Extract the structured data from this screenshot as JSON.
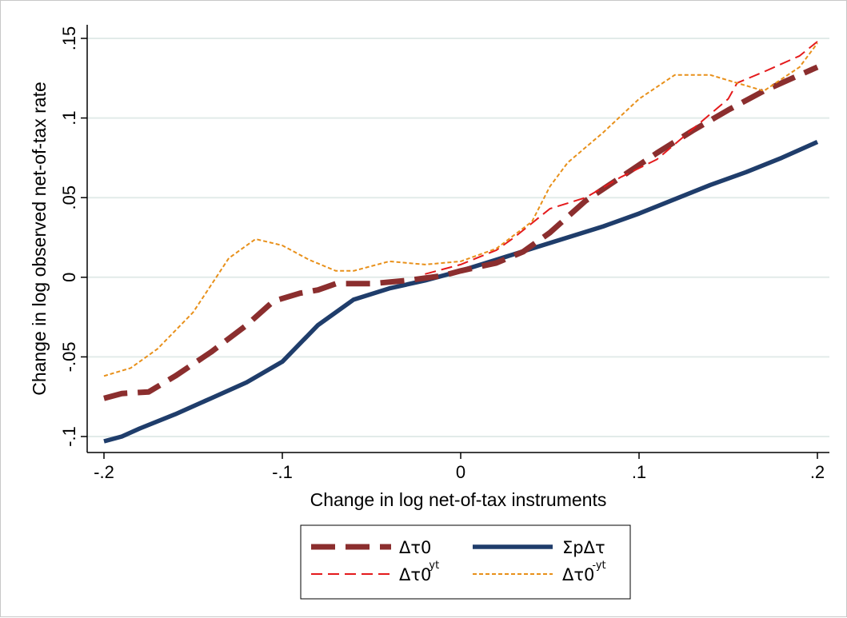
{
  "chart_data": {
    "type": "line",
    "title": "",
    "xlabel": "Change in log net-of-tax instruments",
    "ylabel": "Change in log observed net-of-tax rate",
    "xlim": [
      -0.2,
      0.2
    ],
    "ylim": [
      -0.1,
      0.15
    ],
    "xticks": [
      -0.2,
      -0.1,
      0,
      0.1,
      0.2
    ],
    "xtick_labels": [
      "-.2",
      "-.1",
      "0",
      ".1",
      ".2"
    ],
    "yticks": [
      -0.1,
      -0.05,
      0,
      0.05,
      0.1,
      0.15
    ],
    "ytick_labels": [
      "-.1",
      "-.05",
      "0",
      ".05",
      ".1",
      ".15"
    ],
    "grid": "horizontal",
    "legend_position": "bottom",
    "series": [
      {
        "name": "Δτ0",
        "name_base": "Δτ0",
        "name_sup": "",
        "style": "long-dash-thick",
        "color": "#8b2e2e",
        "x": [
          -0.2,
          -0.19,
          -0.175,
          -0.16,
          -0.14,
          -0.12,
          -0.105,
          -0.09,
          -0.08,
          -0.07,
          -0.05,
          -0.03,
          -0.01,
          0,
          0.02,
          0.035,
          0.05,
          0.07,
          0.09,
          0.11,
          0.13,
          0.15,
          0.17,
          0.19,
          0.2
        ],
        "values": [
          -0.076,
          -0.073,
          -0.072,
          -0.062,
          -0.047,
          -0.03,
          -0.015,
          -0.01,
          -0.008,
          -0.004,
          -0.004,
          -0.002,
          0.001,
          0.004,
          0.009,
          0.016,
          0.028,
          0.048,
          0.063,
          0.078,
          0.092,
          0.105,
          0.117,
          0.127,
          0.132
        ]
      },
      {
        "name": "ΣpΔτ",
        "name_base": "ΣpΔτ",
        "name_sup": "",
        "style": "solid-thick",
        "color": "#1f3d6b",
        "x": [
          -0.2,
          -0.19,
          -0.18,
          -0.16,
          -0.14,
          -0.12,
          -0.1,
          -0.08,
          -0.06,
          -0.04,
          -0.02,
          0,
          0.02,
          0.04,
          0.06,
          0.08,
          0.1,
          0.12,
          0.14,
          0.16,
          0.18,
          0.2
        ],
        "values": [
          -0.103,
          -0.1,
          -0.095,
          -0.086,
          -0.076,
          -0.066,
          -0.053,
          -0.03,
          -0.014,
          -0.007,
          -0.002,
          0.004,
          0.011,
          0.018,
          0.025,
          0.032,
          0.04,
          0.049,
          0.058,
          0.066,
          0.075,
          0.085
        ]
      },
      {
        "name": "Δτ0yt",
        "name_base": "Δτ0",
        "name_sup": "yt",
        "style": "dash-thin",
        "color": "#e41a1c",
        "x": [
          -0.02,
          0,
          0.02,
          0.03,
          0.05,
          0.07,
          0.09,
          0.11,
          0.13,
          0.15,
          0.155,
          0.17,
          0.19,
          0.2
        ],
        "values": [
          0.002,
          0.008,
          0.017,
          0.025,
          0.043,
          0.05,
          0.063,
          0.074,
          0.093,
          0.112,
          0.122,
          0.129,
          0.139,
          0.148
        ]
      },
      {
        "name": "Δτ0-yt",
        "name_base": "Δτ0",
        "name_sup": "-yt",
        "style": "dotted",
        "color": "#e8901a",
        "x": [
          -0.2,
          -0.185,
          -0.17,
          -0.15,
          -0.13,
          -0.115,
          -0.1,
          -0.085,
          -0.07,
          -0.06,
          -0.04,
          -0.02,
          0,
          0.02,
          0.04,
          0.05,
          0.06,
          0.08,
          0.1,
          0.12,
          0.14,
          0.155,
          0.17,
          0.19,
          0.2
        ],
        "values": [
          -0.062,
          -0.057,
          -0.045,
          -0.022,
          0.012,
          0.024,
          0.02,
          0.011,
          0.004,
          0.004,
          0.01,
          0.008,
          0.01,
          0.018,
          0.035,
          0.057,
          0.072,
          0.091,
          0.112,
          0.127,
          0.127,
          0.122,
          0.117,
          0.132,
          0.147
        ]
      }
    ]
  }
}
